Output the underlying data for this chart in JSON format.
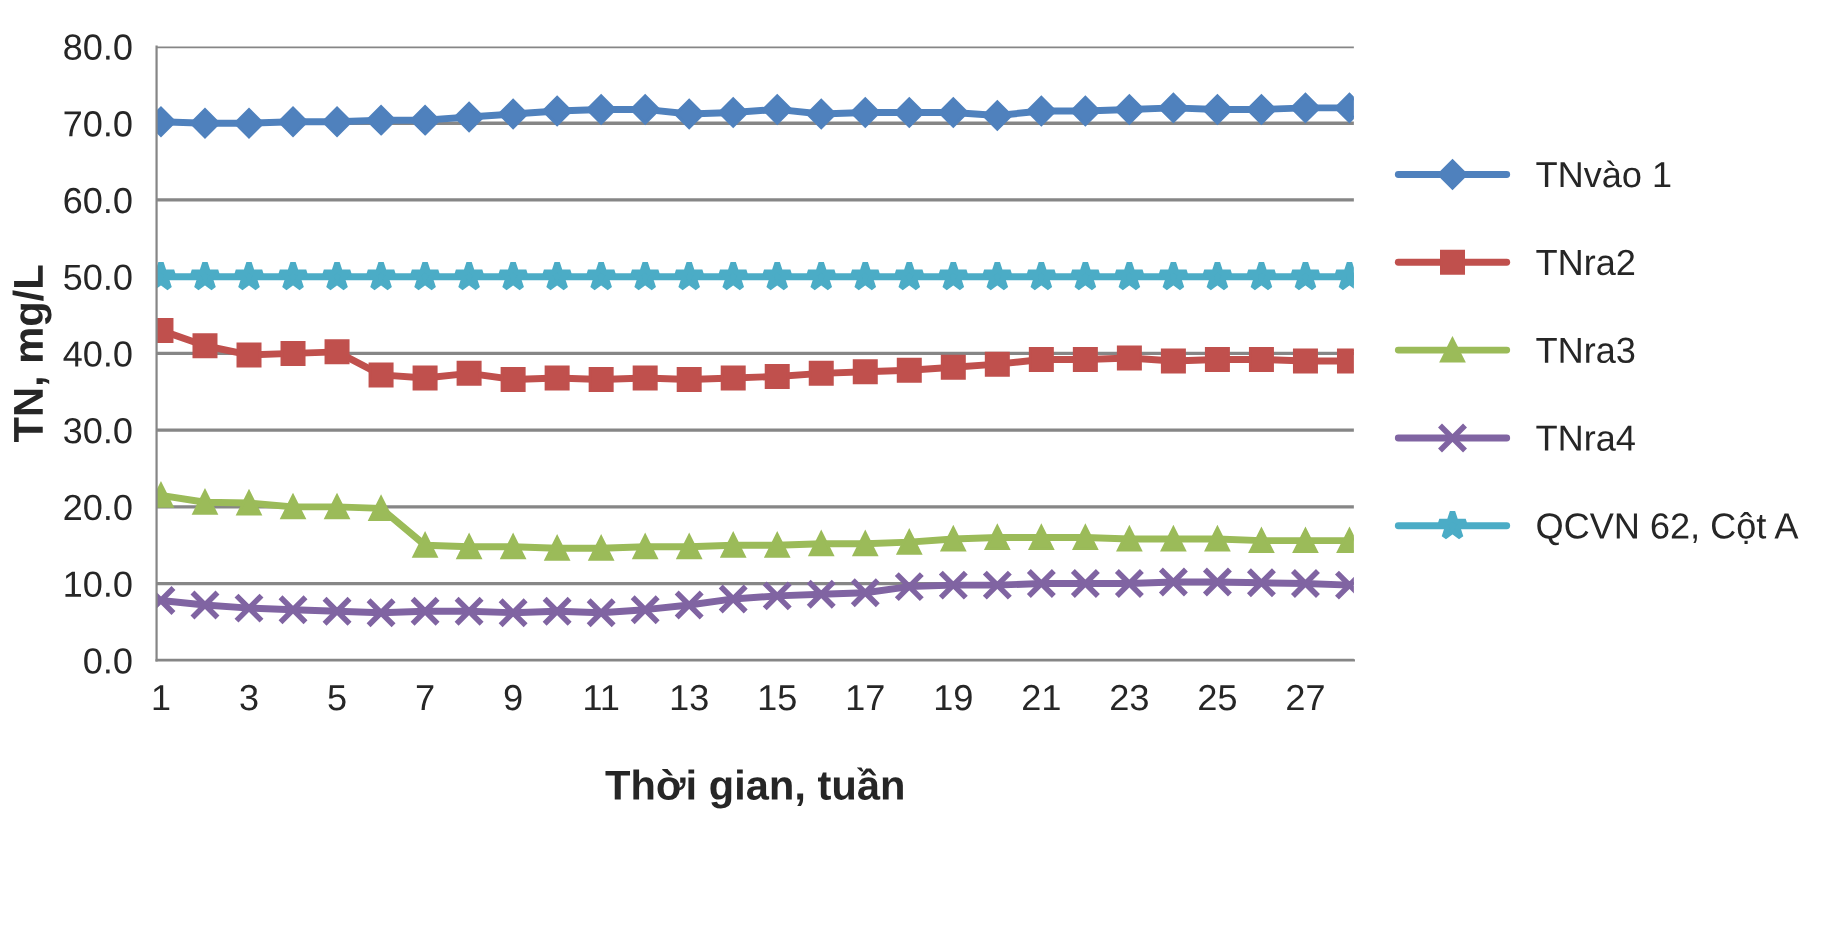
{
  "chart_data": {
    "type": "line",
    "xlabel": "Thời gian, tuần",
    "ylabel": "TN, mg/L",
    "categories": [
      "1",
      null,
      "3",
      null,
      "5",
      null,
      "7",
      null,
      "9",
      null,
      "11",
      null,
      "13",
      null,
      "15",
      null,
      "17",
      null,
      "19",
      null,
      "21",
      null,
      "23",
      null,
      "25",
      null,
      "27",
      null
    ],
    "series": [
      {
        "name": "TNvào 1",
        "color": "#4f81bd",
        "marker": "diamond",
        "values": [
          70.2,
          70,
          70,
          70.2,
          70.2,
          70.4,
          70.4,
          70.8,
          71.2,
          71.6,
          71.8,
          71.8,
          71.2,
          71.4,
          71.8,
          71.2,
          71.4,
          71.4,
          71.4,
          71,
          71.6,
          71.6,
          71.8,
          72,
          71.8,
          71.8,
          72,
          72
        ]
      },
      {
        "name": "TNra2",
        "color": "#c0504d",
        "marker": "square",
        "values": [
          43,
          41,
          39.8,
          40,
          40.2,
          37.2,
          36.8,
          37.4,
          36.6,
          36.8,
          36.6,
          36.8,
          36.6,
          36.8,
          37,
          37.4,
          37.6,
          37.8,
          38.2,
          38.6,
          39.2,
          39.2,
          39.4,
          39,
          39.2,
          39.2,
          39,
          39
        ]
      },
      {
        "name": "TNra3",
        "color": "#9bbb59",
        "marker": "triangle",
        "values": [
          21.5,
          20.6,
          20.5,
          20,
          20,
          19.8,
          15,
          14.8,
          14.8,
          14.6,
          14.6,
          14.8,
          14.8,
          15,
          15,
          15.2,
          15.2,
          15.4,
          15.8,
          16,
          16,
          16,
          15.8,
          15.8,
          15.8,
          15.6,
          15.6,
          15.6
        ]
      },
      {
        "name": "TNra4",
        "color": "#8064a2",
        "marker": "cross",
        "values": [
          7.8,
          7.2,
          6.8,
          6.6,
          6.4,
          6.2,
          6.4,
          6.4,
          6.2,
          6.4,
          6.2,
          6.6,
          7.2,
          8,
          8.4,
          8.6,
          8.8,
          9.6,
          9.8,
          9.8,
          10,
          10,
          10,
          10.2,
          10.2,
          10.1,
          10,
          9.8
        ]
      },
      {
        "name": "QCVN 62, Cột A",
        "color": "#4bacc6",
        "marker": "star",
        "values": [
          50,
          50,
          50,
          50,
          50,
          50,
          50,
          50,
          50,
          50,
          50,
          50,
          50,
          50,
          50,
          50,
          50,
          50,
          50,
          50,
          50,
          50,
          50,
          50,
          50,
          50,
          50,
          50
        ]
      }
    ],
    "ylim": [
      0,
      80
    ],
    "yticks": [
      {
        "value": 0,
        "label": "0.0"
      },
      {
        "value": 10,
        "label": "10.0"
      },
      {
        "value": 20,
        "label": "20.0"
      },
      {
        "value": 30,
        "label": "30.0"
      },
      {
        "value": 40,
        "label": "40.0"
      },
      {
        "value": 50,
        "label": "50.0"
      },
      {
        "value": 60,
        "label": "60.0"
      },
      {
        "value": 70,
        "label": "70.0"
      },
      {
        "value": 80,
        "label": "80.0"
      }
    ],
    "grid": "y",
    "legend": "right",
    "line_style": "solid"
  }
}
